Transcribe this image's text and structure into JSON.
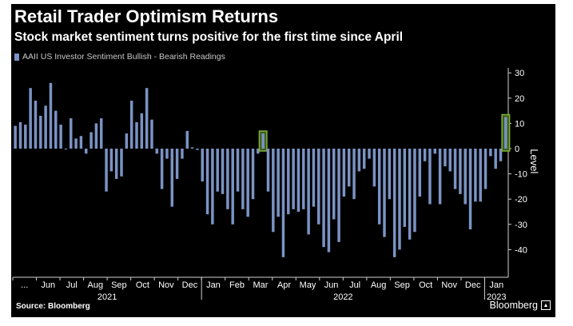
{
  "header": {
    "title": "Retail Trader Optimism Returns",
    "subtitle": "Stock market sentiment turns positive for the first time since April"
  },
  "footer": {
    "source": "Source: Bloomberg",
    "brand": "Bloomberg"
  },
  "colors": {
    "bar": "#7b93c4",
    "highlight_border": "#7fb23b",
    "highlight_fill": "#3f5e1d",
    "axis": "#cfcfcf",
    "text": "#ffffff"
  },
  "chart_data": {
    "type": "bar",
    "legend": "AAII US Investor Sentiment Bullish - Bearish Readings",
    "legend_position": "top-left",
    "ylabel": "Level",
    "y_axis_side": "right",
    "ylim": [
      -50,
      32
    ],
    "yticks": [
      30,
      20,
      10,
      0,
      -10,
      -20,
      -30,
      -40
    ],
    "grid": false,
    "month_labels": [
      "...",
      "Jun",
      "Jul",
      "Aug",
      "Sep",
      "Oct",
      "Nov",
      "Dec",
      "Jan",
      "Feb",
      "Mar",
      "Apr",
      "May",
      "Jun",
      "Jul",
      "Aug",
      "Sep",
      "Oct",
      "Nov",
      "Dec",
      "Jan"
    ],
    "year_labels": [
      "2021",
      "2022",
      "2023"
    ],
    "series": [
      {
        "values": [
          9,
          10.5,
          9.5,
          24,
          19,
          13,
          17,
          26,
          15,
          9.5,
          0,
          12,
          4,
          5,
          -2,
          6.5,
          10,
          12,
          -17,
          -9,
          -12,
          -11,
          6,
          19,
          10.5,
          14,
          24,
          11.5,
          -2,
          -16,
          -4,
          -23,
          -12,
          -4,
          7,
          0.5,
          -0.5,
          -13,
          -26,
          -30,
          -17,
          -18,
          -24,
          -30,
          -17,
          -24,
          -27,
          -20,
          -2,
          6,
          -17,
          -33,
          -27,
          -43,
          -26,
          -24,
          -25,
          -24,
          -34,
          -23,
          -30,
          -39,
          -41,
          -28,
          -37,
          -19,
          -15,
          -20,
          -9,
          -8,
          -4,
          -15,
          -30,
          -35,
          -20,
          -43,
          -40,
          -31,
          -36,
          -33,
          -19,
          -5,
          -22,
          -2,
          -22,
          -7,
          -9,
          -16,
          -18,
          -22,
          -32,
          -21,
          -21,
          -16,
          -3,
          -8,
          -5,
          12.5
        ]
      }
    ],
    "highlighted_values": [
      6,
      12.5
    ]
  }
}
